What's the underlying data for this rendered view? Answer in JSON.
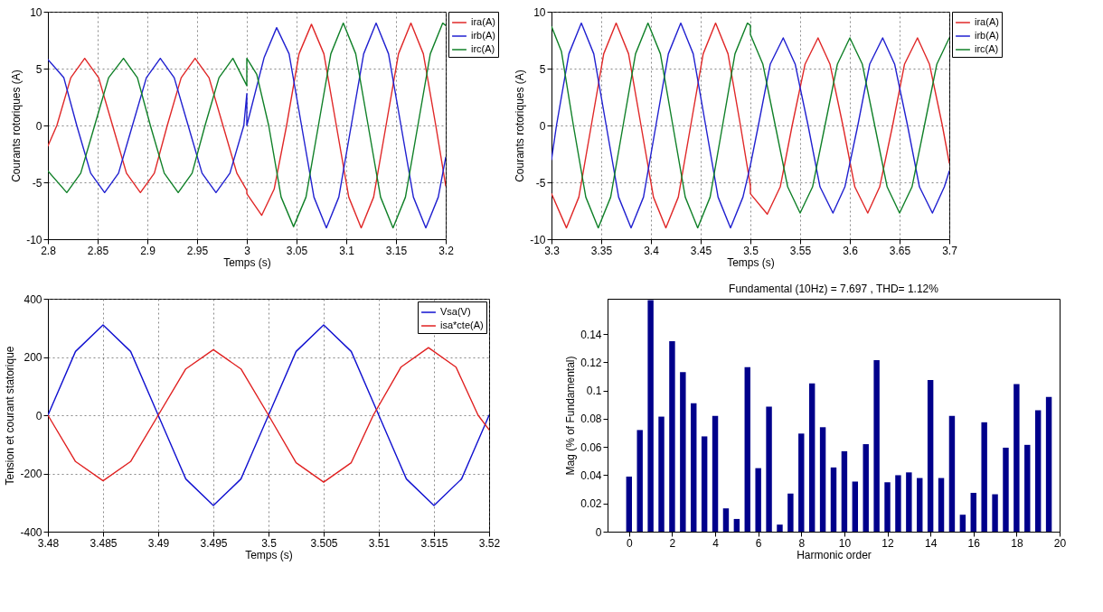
{
  "chart_data": [
    {
      "type": "line",
      "xlabel": "Temps (s)",
      "ylabel": "Courants rotoriques (A)",
      "xlim": [
        2.8,
        3.2
      ],
      "xticks": [
        2.8,
        2.85,
        2.9,
        2.95,
        3,
        3.05,
        3.1,
        3.15,
        3.2
      ],
      "ylim": [
        -10,
        10
      ],
      "yticks": [
        -10,
        -5,
        0,
        5,
        10
      ],
      "grid": true,
      "legend": "right",
      "series": [
        {
          "name": "ira(A)",
          "color": "#e02828",
          "x": [
            2.8,
            2.809,
            2.823,
            2.837,
            2.851,
            2.865,
            2.879,
            2.893,
            2.907,
            2.92,
            2.934,
            2.948,
            2.962,
            2.976,
            2.99,
            3.0,
            3.0,
            3.015,
            3.0275,
            3.04,
            3.0525,
            3.065,
            3.0775,
            3.09,
            3.1025,
            3.115,
            3.1275,
            3.14,
            3.1525,
            3.165,
            3.1775,
            3.19,
            3.2
          ],
          "values": [
            -1.8,
            0,
            4.2,
            5.9,
            4.2,
            0,
            -4.2,
            -5.9,
            -4.2,
            0,
            4.2,
            5.9,
            4.2,
            0,
            -4.2,
            -5.7,
            -6,
            -7.9,
            -5.6,
            0,
            6.3,
            8.9,
            6.3,
            0,
            -6.3,
            -9,
            -6.3,
            0,
            6.3,
            9,
            6.3,
            0,
            -5.3
          ]
        },
        {
          "name": "irb(A)",
          "color": "#2020d0",
          "x": [
            2.8,
            2.816,
            2.829,
            2.843,
            2.857,
            2.871,
            2.885,
            2.899,
            2.913,
            2.927,
            2.941,
            2.955,
            2.969,
            2.983,
            2.997,
            3.0,
            3.0,
            3.0175,
            3.03,
            3.0425,
            3.055,
            3.0675,
            3.08,
            3.0925,
            3.105,
            3.1175,
            3.13,
            3.1425,
            3.155,
            3.1675,
            3.18,
            3.1925,
            3.2
          ],
          "values": [
            5.8,
            4.2,
            0,
            -4.2,
            -5.9,
            -4.2,
            0,
            4.2,
            5.9,
            4.2,
            0,
            -4.2,
            -5.9,
            -4.2,
            0,
            2.8,
            0,
            6,
            8.6,
            6.3,
            0,
            -6.3,
            -9,
            -6.3,
            0,
            6.3,
            9,
            6.3,
            0,
            -6.3,
            -9,
            -6.3,
            -2.8
          ]
        },
        {
          "name": "irc(A)",
          "color": "#108028",
          "x": [
            2.8,
            2.819,
            2.833,
            2.847,
            2.861,
            2.876,
            2.89,
            2.903,
            2.917,
            2.931,
            2.945,
            2.958,
            2.972,
            2.986,
            3.0,
            3.0,
            3.01,
            3.022,
            3.0345,
            3.047,
            3.0595,
            3.072,
            3.0845,
            3.097,
            3.1095,
            3.122,
            3.1345,
            3.147,
            3.1595,
            3.172,
            3.1845,
            3.197,
            3.2
          ],
          "values": [
            -4,
            -5.9,
            -4.2,
            0,
            4.2,
            5.9,
            4.2,
            0,
            -4.2,
            -5.9,
            -4.2,
            0,
            4.2,
            5.9,
            3.5,
            5.9,
            4.5,
            0,
            -6.3,
            -8.9,
            -6.3,
            0,
            6.3,
            9,
            6.3,
            0,
            -6.3,
            -9,
            -6.3,
            0,
            6.3,
            9,
            8.8
          ]
        }
      ]
    },
    {
      "type": "line",
      "xlabel": "Temps (s)",
      "ylabel": "Courants rotoriques (A)",
      "xlim": [
        3.3,
        3.7
      ],
      "xticks": [
        3.3,
        3.35,
        3.4,
        3.45,
        3.5,
        3.55,
        3.6,
        3.65,
        3.7
      ],
      "ylim": [
        -10,
        10
      ],
      "yticks": [
        -10,
        -5,
        0,
        5,
        10
      ],
      "grid": true,
      "legend": "right",
      "series": [
        {
          "name": "ira(A)",
          "color": "#e02828",
          "x": [
            3.3,
            3.315,
            3.3275,
            3.34,
            3.3525,
            3.365,
            3.3775,
            3.39,
            3.4025,
            3.415,
            3.4275,
            3.44,
            3.4525,
            3.465,
            3.4775,
            3.49,
            3.5,
            3.5,
            3.517,
            3.53,
            3.542,
            3.555,
            3.568,
            3.58,
            3.593,
            3.605,
            3.618,
            3.63,
            3.643,
            3.655,
            3.668,
            3.68,
            3.693,
            3.7
          ],
          "values": [
            -6,
            -9,
            -6.3,
            0,
            6.3,
            9,
            6.3,
            0,
            -6.3,
            -9,
            -6.3,
            0,
            6.3,
            9,
            6.3,
            0,
            -5.3,
            -6,
            -7.8,
            -5.4,
            0,
            5.4,
            7.7,
            5.4,
            0,
            -5.4,
            -7.7,
            -5.4,
            0,
            5.4,
            7.7,
            5.4,
            0,
            -3.3
          ]
        },
        {
          "name": "irb(A)",
          "color": "#2020d0",
          "x": [
            3.3,
            3.305,
            3.3175,
            3.33,
            3.3425,
            3.355,
            3.3675,
            3.38,
            3.3925,
            3.405,
            3.4175,
            3.43,
            3.4425,
            3.455,
            3.4675,
            3.48,
            3.4925,
            3.5,
            3.508,
            3.52,
            3.533,
            3.545,
            3.558,
            3.57,
            3.583,
            3.595,
            3.608,
            3.62,
            3.633,
            3.645,
            3.658,
            3.67,
            3.683,
            3.695,
            3.7
          ],
          "values": [
            -3,
            0,
            6.3,
            9,
            6.3,
            0,
            -6.3,
            -9,
            -6.3,
            0,
            6.3,
            9,
            6.3,
            0,
            -6.3,
            -9,
            -6.3,
            -3.5,
            0,
            5.4,
            7.7,
            5.4,
            0,
            -5.4,
            -7.7,
            -5.4,
            0,
            5.4,
            7.7,
            5.4,
            0,
            -5.4,
            -7.7,
            -5.4,
            -4
          ]
        },
        {
          "name": "irc(A)",
          "color": "#108028",
          "x": [
            3.3,
            3.31,
            3.322,
            3.3345,
            3.347,
            3.3595,
            3.372,
            3.3845,
            3.397,
            3.4095,
            3.422,
            3.4345,
            3.447,
            3.4595,
            3.472,
            3.4845,
            3.497,
            3.5,
            3.5,
            3.5125,
            3.525,
            3.5375,
            3.55,
            3.5625,
            3.575,
            3.5875,
            3.6,
            3.6125,
            3.625,
            3.6375,
            3.65,
            3.6625,
            3.675,
            3.6875,
            3.7
          ],
          "values": [
            8.7,
            6.5,
            0,
            -6.3,
            -9,
            -6.3,
            0,
            6.3,
            9,
            6.3,
            0,
            -6.3,
            -9,
            -6.3,
            0,
            6.3,
            9,
            8.8,
            8,
            5.4,
            0,
            -5.4,
            -7.7,
            -5.4,
            0,
            5.4,
            7.7,
            5.4,
            0,
            -5.4,
            -7.7,
            -5.4,
            0,
            5.4,
            7.7
          ]
        }
      ]
    },
    {
      "type": "line",
      "xlabel": "Temps (s)",
      "ylabel": "Tension et courant statorique",
      "xlim": [
        3.48,
        3.52
      ],
      "xticks": [
        3.48,
        3.485,
        3.49,
        3.495,
        3.5,
        3.505,
        3.51,
        3.515,
        3.52
      ],
      "ylim": [
        -400,
        400
      ],
      "yticks": [
        -400,
        -200,
        0,
        200,
        400
      ],
      "grid": true,
      "legend": "top right",
      "series": [
        {
          "name": "Vsa(V)",
          "color": "#1010d0",
          "x": [
            3.48,
            3.4825,
            3.485,
            3.4875,
            3.49,
            3.4925,
            3.495,
            3.4975,
            3.5,
            3.5025,
            3.505,
            3.5075,
            3.51,
            3.5125,
            3.515,
            3.5175,
            3.52
          ],
          "values": [
            0,
            219,
            310,
            219,
            0,
            -219,
            -310,
            -219,
            0,
            219,
            310,
            219,
            0,
            -219,
            -310,
            -219,
            0
          ]
        },
        {
          "name": "isa*cte(A)",
          "color": "#e02020",
          "x": [
            3.48,
            3.4825,
            3.485,
            3.4875,
            3.49,
            3.4925,
            3.495,
            3.4975,
            3.5,
            3.5025,
            3.505,
            3.5075,
            3.5095,
            3.512,
            3.5145,
            3.517,
            3.519,
            3.52
          ],
          "values": [
            0,
            -159,
            -225,
            -159,
            0,
            159,
            225,
            159,
            0,
            -163,
            -230,
            -163,
            0,
            165,
            232,
            165,
            0,
            -50
          ]
        }
      ]
    },
    {
      "type": "bar",
      "title": "Fundamental (10Hz) = 7.697 , THD= 1.12%",
      "xlabel": "Harmonic order",
      "ylabel": "Mag (% of Fundamental)",
      "xlim": [
        -1,
        20
      ],
      "xticks": [
        0,
        2,
        4,
        6,
        8,
        10,
        12,
        14,
        16,
        18,
        20
      ],
      "ylim": [
        0,
        0.165
      ],
      "yticks": [
        0,
        0.02,
        0.04,
        0.06,
        0.08,
        0.1,
        0.12,
        0.14
      ],
      "color": "#00008b",
      "x": [
        0,
        0.5,
        1,
        1.5,
        2,
        2.5,
        3,
        3.5,
        4,
        4.5,
        5,
        5.5,
        6,
        6.5,
        7,
        7.5,
        8,
        8.5,
        9,
        9.5,
        10,
        10.5,
        11,
        11.5,
        12,
        12.5,
        13,
        13.5,
        14,
        14.5,
        15,
        15.5,
        16,
        16.5,
        17,
        17.5,
        18,
        18.5,
        19,
        19.5
      ],
      "values": [
        0.039,
        0.072,
        0.164,
        0.0815,
        0.135,
        0.113,
        0.091,
        0.0675,
        0.082,
        0.0165,
        0.009,
        0.1165,
        0.045,
        0.0885,
        0.005,
        0.027,
        0.0695,
        0.105,
        0.074,
        0.0455,
        0.057,
        0.0355,
        0.062,
        0.1215,
        0.035,
        0.04,
        0.042,
        0.038,
        0.1075,
        0.038,
        0.082,
        0.012,
        0.0275,
        0.0775,
        0.0265,
        0.0595,
        0.1045,
        0.0615,
        0.086,
        0.0955
      ]
    }
  ]
}
